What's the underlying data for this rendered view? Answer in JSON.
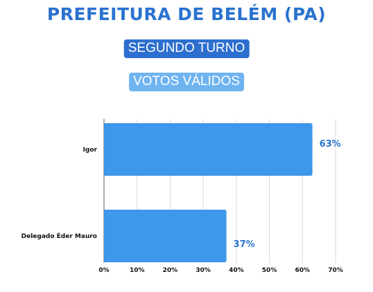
{
  "header": {
    "title": "PREFEITURA DE BELÉM (PA)",
    "badge_round": "SEGUNDO TURNO",
    "badge_votes": "VOTOS VÁLIDOS"
  },
  "colors": {
    "title": "#2a72cf",
    "badge_round_bg": "#2d6fce",
    "badge_votes_bg": "#6fb4f1",
    "bar": "#3d97ea",
    "value_label": "#2a72cf",
    "grid": "#d9d9d9"
  },
  "chart_data": {
    "type": "bar",
    "orientation": "horizontal",
    "title": "PREFEITURA DE BELÉM (PA)",
    "categories": [
      "Igor",
      "Delegado Éder Mauro"
    ],
    "values": [
      63,
      37
    ],
    "value_labels": [
      "63%",
      "37%"
    ],
    "xlim": [
      0,
      70
    ],
    "x_ticks": [
      0,
      10,
      20,
      30,
      40,
      50,
      60,
      70
    ],
    "x_tick_labels": [
      "0%",
      "10%",
      "20%",
      "30%",
      "40%",
      "50%",
      "60%",
      "70%"
    ],
    "grid": true,
    "legend": "none"
  }
}
